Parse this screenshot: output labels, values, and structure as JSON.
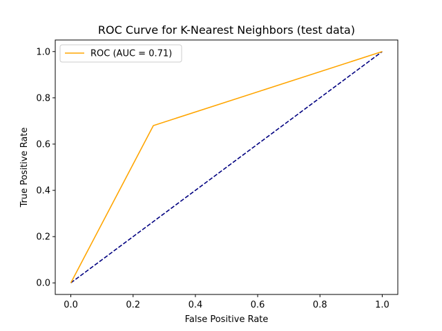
{
  "chart_data": {
    "type": "line",
    "title": "ROC Curve for K-Nearest Neighbors (test data)",
    "xlabel": "False Positive Rate",
    "ylabel": "True Positive Rate",
    "xlim": [
      -0.05,
      1.05
    ],
    "ylim": [
      -0.05,
      1.05
    ],
    "xticks": [
      "0.0",
      "0.2",
      "0.4",
      "0.6",
      "0.8",
      "1.0"
    ],
    "yticks": [
      "0.0",
      "0.2",
      "0.4",
      "0.6",
      "0.8",
      "1.0"
    ],
    "grid": false,
    "legend": "upper-left",
    "series": [
      {
        "name": "ROC (AUC = 0.71)",
        "color": "#ffa500",
        "style": "solid",
        "x": [
          0.0,
          0.265,
          1.0
        ],
        "y": [
          0.0,
          0.68,
          1.0
        ]
      },
      {
        "color": "#000080",
        "style": "dashed",
        "x": [
          0.0,
          1.0
        ],
        "y": [
          0.0,
          1.0
        ]
      }
    ]
  }
}
